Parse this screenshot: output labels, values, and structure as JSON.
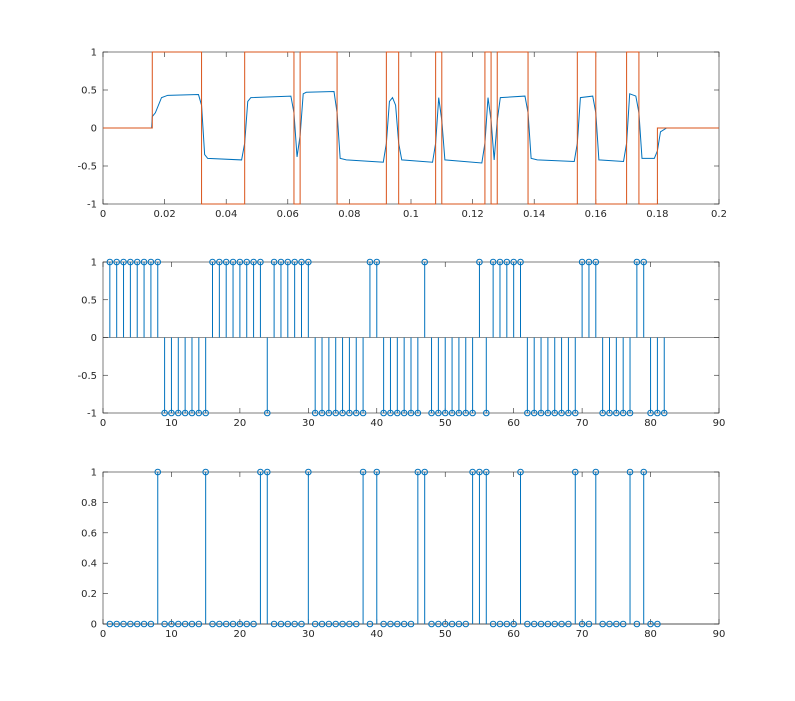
{
  "chart_data": [
    {
      "type": "line",
      "xlim": [
        0,
        0.2
      ],
      "xticks": [
        0,
        0.02,
        0.04,
        0.06,
        0.08,
        0.1,
        0.12,
        0.14,
        0.16,
        0.18,
        0.2
      ],
      "ylim": [
        -1,
        1
      ],
      "yticks": [
        -1,
        -0.5,
        0,
        0.5,
        1
      ],
      "series": [
        {
          "color": "#0072BD",
          "x": [
            0,
            0.0158,
            0.016,
            0.017,
            0.019,
            0.021,
            0.031,
            0.032,
            0.033,
            0.034,
            0.045,
            0.046,
            0.047,
            0.048,
            0.061,
            0.062,
            0.063,
            0.064,
            0.065,
            0.066,
            0.075,
            0.076,
            0.077,
            0.079,
            0.091,
            0.092,
            0.093,
            0.094,
            0.095,
            0.096,
            0.097,
            0.107,
            0.108,
            0.109,
            0.11,
            0.111,
            0.123,
            0.124,
            0.125,
            0.126,
            0.127,
            0.128,
            0.129,
            0.137,
            0.138,
            0.139,
            0.141,
            0.153,
            0.154,
            0.155,
            0.159,
            0.16,
            0.161,
            0.169,
            0.17,
            0.171,
            0.173,
            0.174,
            0.175,
            0.179,
            0.18,
            0.181,
            0.183,
            0.2
          ],
          "values": [
            0,
            0,
            0.15,
            0.2,
            0.4,
            0.43,
            0.44,
            0.3,
            -0.35,
            -0.4,
            -0.42,
            -0.2,
            0.35,
            0.4,
            0.42,
            0.2,
            -0.38,
            -0.1,
            0.45,
            0.47,
            0.48,
            0.2,
            -0.4,
            -0.42,
            -0.45,
            -0.2,
            0.35,
            0.4,
            0.3,
            -0.2,
            -0.42,
            -0.45,
            -0.2,
            0.4,
            0.1,
            -0.42,
            -0.46,
            -0.2,
            0.4,
            0.1,
            -0.42,
            0.1,
            0.4,
            0.42,
            0.2,
            -0.4,
            -0.42,
            -0.44,
            -0.2,
            0.4,
            0.42,
            0.2,
            -0.42,
            -0.44,
            -0.2,
            0.45,
            0.42,
            0.2,
            -0.4,
            -0.4,
            -0.3,
            -0.05,
            0,
            0
          ]
        },
        {
          "color": "#D95319",
          "x": [
            0,
            0.016,
            0.016,
            0.032,
            0.032,
            0.046,
            0.046,
            0.062,
            0.062,
            0.064,
            0.064,
            0.076,
            0.076,
            0.092,
            0.092,
            0.096,
            0.096,
            0.108,
            0.108,
            0.11,
            0.11,
            0.124,
            0.124,
            0.126,
            0.126,
            0.128,
            0.128,
            0.138,
            0.138,
            0.154,
            0.154,
            0.16,
            0.16,
            0.17,
            0.17,
            0.174,
            0.174,
            0.18,
            0.18,
            0.2
          ],
          "values": [
            0,
            0,
            1,
            1,
            -1,
            -1,
            1,
            1,
            -1,
            -1,
            1,
            1,
            -1,
            -1,
            1,
            1,
            -1,
            -1,
            1,
            1,
            -1,
            -1,
            1,
            1,
            -1,
            -1,
            1,
            1,
            -1,
            -1,
            1,
            1,
            -1,
            -1,
            1,
            1,
            -1,
            -1,
            0,
            0
          ]
        }
      ]
    },
    {
      "type": "stem",
      "xlim": [
        0,
        90
      ],
      "xticks": [
        0,
        10,
        20,
        30,
        40,
        50,
        60,
        70,
        80,
        90
      ],
      "ylim": [
        -1,
        1
      ],
      "yticks": [
        -1,
        -0.5,
        0,
        0.5,
        1
      ],
      "series": [
        {
          "color": "#0072BD",
          "x": [
            1,
            2,
            3,
            4,
            5,
            6,
            7,
            8,
            9,
            10,
            11,
            12,
            13,
            14,
            15,
            16,
            17,
            18,
            19,
            20,
            21,
            22,
            23,
            24,
            25,
            26,
            27,
            28,
            29,
            30,
            31,
            32,
            33,
            34,
            35,
            36,
            37,
            38,
            39,
            40,
            41,
            42,
            43,
            44,
            45,
            46,
            47,
            48,
            49,
            50,
            51,
            52,
            53,
            54,
            55,
            56,
            57,
            58,
            59,
            60,
            61,
            62,
            63,
            64,
            65,
            66,
            67,
            68,
            69,
            70,
            71,
            72,
            73,
            74,
            75,
            76,
            77,
            78,
            79,
            80,
            81,
            82
          ],
          "values": [
            1,
            1,
            1,
            1,
            1,
            1,
            1,
            1,
            -1,
            -1,
            -1,
            -1,
            -1,
            -1,
            -1,
            1,
            1,
            1,
            1,
            1,
            1,
            1,
            1,
            -1,
            1,
            1,
            1,
            1,
            1,
            1,
            -1,
            -1,
            -1,
            -1,
            -1,
            -1,
            -1,
            -1,
            1,
            1,
            -1,
            -1,
            -1,
            -1,
            -1,
            -1,
            1,
            -1,
            -1,
            -1,
            -1,
            -1,
            -1,
            -1,
            1,
            -1,
            1,
            1,
            1,
            1,
            1,
            -1,
            -1,
            -1,
            -1,
            -1,
            -1,
            -1,
            -1,
            1,
            1,
            1,
            -1,
            -1,
            -1,
            -1,
            -1,
            1,
            1,
            -1,
            -1,
            -1
          ]
        }
      ]
    },
    {
      "type": "stem",
      "xlim": [
        0,
        90
      ],
      "xticks": [
        0,
        10,
        20,
        30,
        40,
        50,
        60,
        70,
        80,
        90
      ],
      "ylim": [
        0,
        1
      ],
      "yticks": [
        0,
        0.2,
        0.4,
        0.6,
        0.8,
        1
      ],
      "series": [
        {
          "color": "#0072BD",
          "x": [
            1,
            2,
            3,
            4,
            5,
            6,
            7,
            8,
            9,
            10,
            11,
            12,
            13,
            14,
            15,
            16,
            17,
            18,
            19,
            20,
            21,
            22,
            23,
            24,
            25,
            26,
            27,
            28,
            29,
            30,
            31,
            32,
            33,
            34,
            35,
            36,
            37,
            38,
            39,
            40,
            41,
            42,
            43,
            44,
            45,
            46,
            47,
            48,
            49,
            50,
            51,
            52,
            53,
            54,
            55,
            56,
            57,
            58,
            59,
            60,
            61,
            62,
            63,
            64,
            65,
            66,
            67,
            68,
            69,
            70,
            71,
            72,
            73,
            74,
            75,
            76,
            77,
            78,
            79,
            80,
            81
          ],
          "values": [
            0,
            0,
            0,
            0,
            0,
            0,
            0,
            1,
            0,
            0,
            0,
            0,
            0,
            0,
            1,
            0,
            0,
            0,
            0,
            0,
            0,
            0,
            1,
            1,
            0,
            0,
            0,
            0,
            0,
            1,
            0,
            0,
            0,
            0,
            0,
            0,
            0,
            1,
            0,
            1,
            0,
            0,
            0,
            0,
            0,
            1,
            1,
            0,
            0,
            0,
            0,
            0,
            0,
            1,
            1,
            1,
            0,
            0,
            0,
            0,
            1,
            0,
            0,
            0,
            0,
            0,
            0,
            0,
            1,
            0,
            0,
            1,
            0,
            0,
            0,
            0,
            1,
            0,
            1,
            0,
            0
          ]
        }
      ]
    }
  ]
}
